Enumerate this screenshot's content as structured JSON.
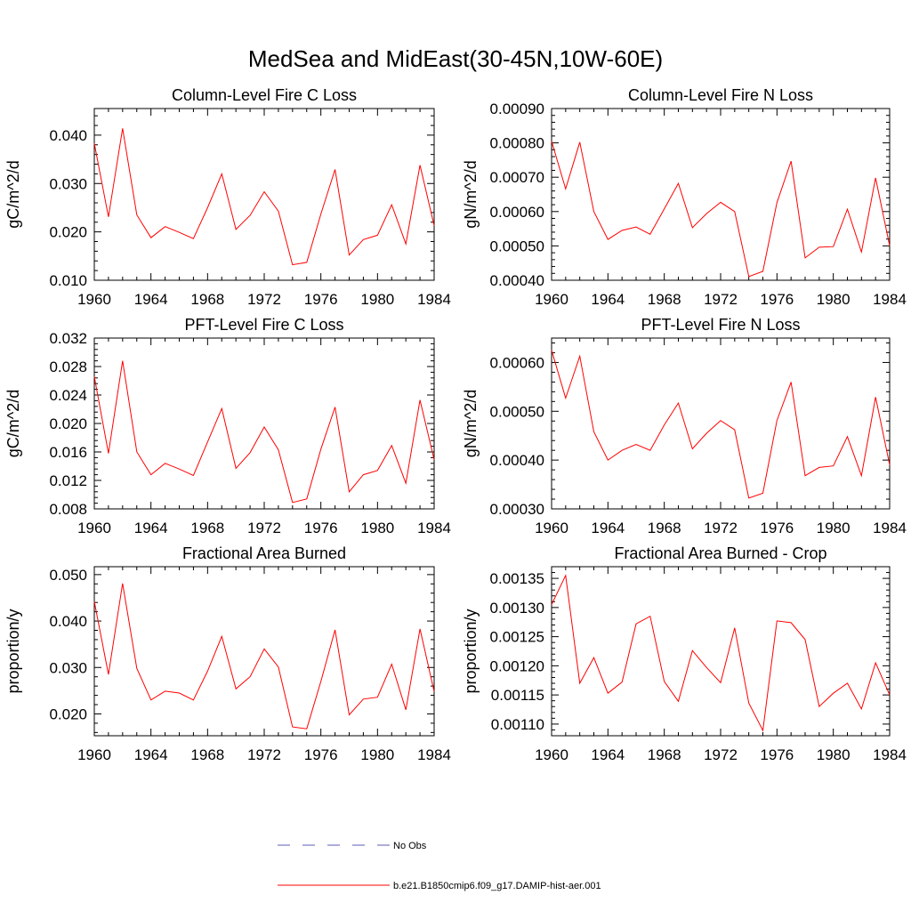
{
  "title": "MedSea and MidEast(30-45N,10W-60E)",
  "legend": [
    {
      "label": "No Obs",
      "color": "#5b5bb5",
      "style": "dashed"
    },
    {
      "label": "b.e21.B1850cmip6.f09_g17.DAMIP-hist-aer.001",
      "color": "#ff0000",
      "style": "solid"
    }
  ],
  "chart_data": [
    {
      "type": "line",
      "title": "Column-Level Fire C Loss",
      "ylabel": "gC/m^2/d",
      "xlim": [
        1960,
        1984
      ],
      "ylim": [
        0.01,
        0.0455
      ],
      "xticks": [
        1960,
        1964,
        1968,
        1972,
        1976,
        1980,
        1984
      ],
      "yticks": [
        0.01,
        0.02,
        0.03,
        0.04
      ],
      "ytick_labels": [
        "0.010",
        "0.020",
        "0.030",
        "0.040"
      ],
      "x": [
        1960,
        1961,
        1962,
        1963,
        1964,
        1965,
        1966,
        1967,
        1968,
        1969,
        1970,
        1971,
        1972,
        1973,
        1974,
        1975,
        1976,
        1977,
        1978,
        1979,
        1980,
        1981,
        1982,
        1983,
        1984
      ],
      "series": [
        {
          "name": "b.e21.B1850cmip6.f09_g17.DAMIP-hist-aer.001",
          "color": "#ff0000",
          "values": [
            0.0383,
            0.0231,
            0.0414,
            0.0235,
            0.0188,
            0.0211,
            0.0199,
            0.0186,
            0.025,
            0.032,
            0.0205,
            0.0234,
            0.0283,
            0.0243,
            0.0132,
            0.0137,
            0.0237,
            0.0329,
            0.0152,
            0.0184,
            0.0193,
            0.0256,
            0.0175,
            0.0338,
            0.0213
          ]
        }
      ]
    },
    {
      "type": "line",
      "title": "Column-Level Fire N Loss",
      "ylabel": "gN/m^2/d",
      "xlim": [
        1960,
        1984
      ],
      "ylim": [
        0.0004,
        0.0009
      ],
      "xticks": [
        1960,
        1964,
        1968,
        1972,
        1976,
        1980,
        1984
      ],
      "yticks": [
        0.0004,
        0.0005,
        0.0006,
        0.0007,
        0.0008,
        0.0009
      ],
      "ytick_labels": [
        "0.00040",
        "0.00050",
        "0.00060",
        "0.00070",
        "0.00080",
        "0.00090"
      ],
      "x": [
        1960,
        1961,
        1962,
        1963,
        1964,
        1965,
        1966,
        1967,
        1968,
        1969,
        1970,
        1971,
        1972,
        1973,
        1974,
        1975,
        1976,
        1977,
        1978,
        1979,
        1980,
        1981,
        1982,
        1983,
        1984
      ],
      "series": [
        {
          "name": "b.e21.B1850cmip6.f09_g17.DAMIP-hist-aer.001",
          "color": "#ff0000",
          "values": [
            0.000805,
            0.000666,
            0.000802,
            0.0006,
            0.000519,
            0.000545,
            0.000555,
            0.000534,
            0.000608,
            0.000682,
            0.000553,
            0.000594,
            0.000627,
            0.0006,
            0.000411,
            0.000426,
            0.000626,
            0.000747,
            0.000465,
            0.000496,
            0.000498,
            0.000607,
            0.000482,
            0.000698,
            0.0005
          ]
        }
      ]
    },
    {
      "type": "line",
      "title": "PFT-Level Fire C Loss",
      "ylabel": "gC/m^2/d",
      "xlim": [
        1960,
        1984
      ],
      "ylim": [
        0.008,
        0.032
      ],
      "xticks": [
        1960,
        1964,
        1968,
        1972,
        1976,
        1980,
        1984
      ],
      "yticks": [
        0.008,
        0.012,
        0.016,
        0.02,
        0.024,
        0.028,
        0.032
      ],
      "ytick_labels": [
        "0.008",
        "0.012",
        "0.016",
        "0.020",
        "0.024",
        "0.028",
        "0.032"
      ],
      "x": [
        1960,
        1961,
        1962,
        1963,
        1964,
        1965,
        1966,
        1967,
        1968,
        1969,
        1970,
        1971,
        1972,
        1973,
        1974,
        1975,
        1976,
        1977,
        1978,
        1979,
        1980,
        1981,
        1982,
        1983,
        1984
      ],
      "series": [
        {
          "name": "b.e21.B1850cmip6.f09_g17.DAMIP-hist-aer.001",
          "color": "#ff0000",
          "values": [
            0.0266,
            0.0158,
            0.0288,
            0.016,
            0.0128,
            0.0144,
            0.0136,
            0.0127,
            0.0174,
            0.0221,
            0.0137,
            0.0159,
            0.0195,
            0.0163,
            0.0089,
            0.0094,
            0.0164,
            0.0223,
            0.0104,
            0.0128,
            0.0134,
            0.0169,
            0.0116,
            0.0233,
            0.0149
          ]
        }
      ]
    },
    {
      "type": "line",
      "title": "PFT-Level Fire N Loss",
      "ylabel": "gN/m^2/d",
      "xlim": [
        1960,
        1984
      ],
      "ylim": [
        0.0003,
        0.00065
      ],
      "xticks": [
        1960,
        1964,
        1968,
        1972,
        1976,
        1980,
        1984
      ],
      "yticks": [
        0.0003,
        0.0004,
        0.0005,
        0.0006
      ],
      "ytick_labels": [
        "0.00030",
        "0.00040",
        "0.00050",
        "0.00060"
      ],
      "x": [
        1960,
        1961,
        1962,
        1963,
        1964,
        1965,
        1966,
        1967,
        1968,
        1969,
        1970,
        1971,
        1972,
        1973,
        1974,
        1975,
        1976,
        1977,
        1978,
        1979,
        1980,
        1981,
        1982,
        1983,
        1984
      ],
      "series": [
        {
          "name": "b.e21.B1850cmip6.f09_g17.DAMIP-hist-aer.001",
          "color": "#ff0000",
          "values": [
            0.000625,
            0.000527,
            0.000613,
            0.000458,
            0.0004,
            0.00042,
            0.000432,
            0.00042,
            0.000472,
            0.000517,
            0.000423,
            0.000455,
            0.000481,
            0.000462,
            0.000322,
            0.000332,
            0.000481,
            0.00056,
            0.000368,
            0.000385,
            0.000388,
            0.000448,
            0.000368,
            0.000529,
            0.00039
          ]
        }
      ]
    },
    {
      "type": "line",
      "title": "Fractional Area Burned",
      "ylabel": "proportion/y",
      "xlim": [
        1960,
        1984
      ],
      "ylim": [
        0.0153,
        0.0517
      ],
      "xticks": [
        1960,
        1964,
        1968,
        1972,
        1976,
        1980,
        1984
      ],
      "yticks": [
        0.02,
        0.03,
        0.04,
        0.05
      ],
      "ytick_labels": [
        "0.020",
        "0.030",
        "0.040",
        "0.050"
      ],
      "x": [
        1960,
        1961,
        1962,
        1963,
        1964,
        1965,
        1966,
        1967,
        1968,
        1969,
        1970,
        1971,
        1972,
        1973,
        1974,
        1975,
        1976,
        1977,
        1978,
        1979,
        1980,
        1981,
        1982,
        1983,
        1984
      ],
      "series": [
        {
          "name": "b.e21.B1850cmip6.f09_g17.DAMIP-hist-aer.001",
          "color": "#ff0000",
          "values": [
            0.0442,
            0.0285,
            0.0481,
            0.0298,
            0.023,
            0.0249,
            0.0245,
            0.023,
            0.0292,
            0.0367,
            0.0254,
            0.028,
            0.034,
            0.0301,
            0.0172,
            0.0168,
            0.027,
            0.0381,
            0.0198,
            0.0232,
            0.0236,
            0.0307,
            0.0209,
            0.0383,
            0.0248
          ]
        }
      ]
    },
    {
      "type": "line",
      "title": "Fractional Area Burned - Crop",
      "ylabel": "proportion/y",
      "xlim": [
        1960,
        1984
      ],
      "ylim": [
        0.00108,
        0.00137
      ],
      "xticks": [
        1960,
        1964,
        1968,
        1972,
        1976,
        1980,
        1984
      ],
      "yticks": [
        0.0011,
        0.00115,
        0.0012,
        0.00125,
        0.0013,
        0.00135
      ],
      "ytick_labels": [
        "0.00110",
        "0.00115",
        "0.00120",
        "0.00125",
        "0.00130",
        "0.00135"
      ],
      "x": [
        1960,
        1961,
        1962,
        1963,
        1964,
        1965,
        1966,
        1967,
        1968,
        1969,
        1970,
        1971,
        1972,
        1973,
        1974,
        1975,
        1976,
        1977,
        1978,
        1979,
        1980,
        1981,
        1982,
        1983,
        1984
      ],
      "series": [
        {
          "name": "b.e21.B1850cmip6.f09_g17.DAMIP-hist-aer.001",
          "color": "#ff0000",
          "values": [
            0.001305,
            0.001355,
            0.00117,
            0.001214,
            0.001153,
            0.001172,
            0.001272,
            0.001285,
            0.001173,
            0.001139,
            0.001226,
            0.001197,
            0.001171,
            0.001265,
            0.001136,
            0.001089,
            0.001277,
            0.001274,
            0.001245,
            0.00113,
            0.001153,
            0.00117,
            0.001126,
            0.001205,
            0.00115
          ]
        }
      ]
    }
  ]
}
